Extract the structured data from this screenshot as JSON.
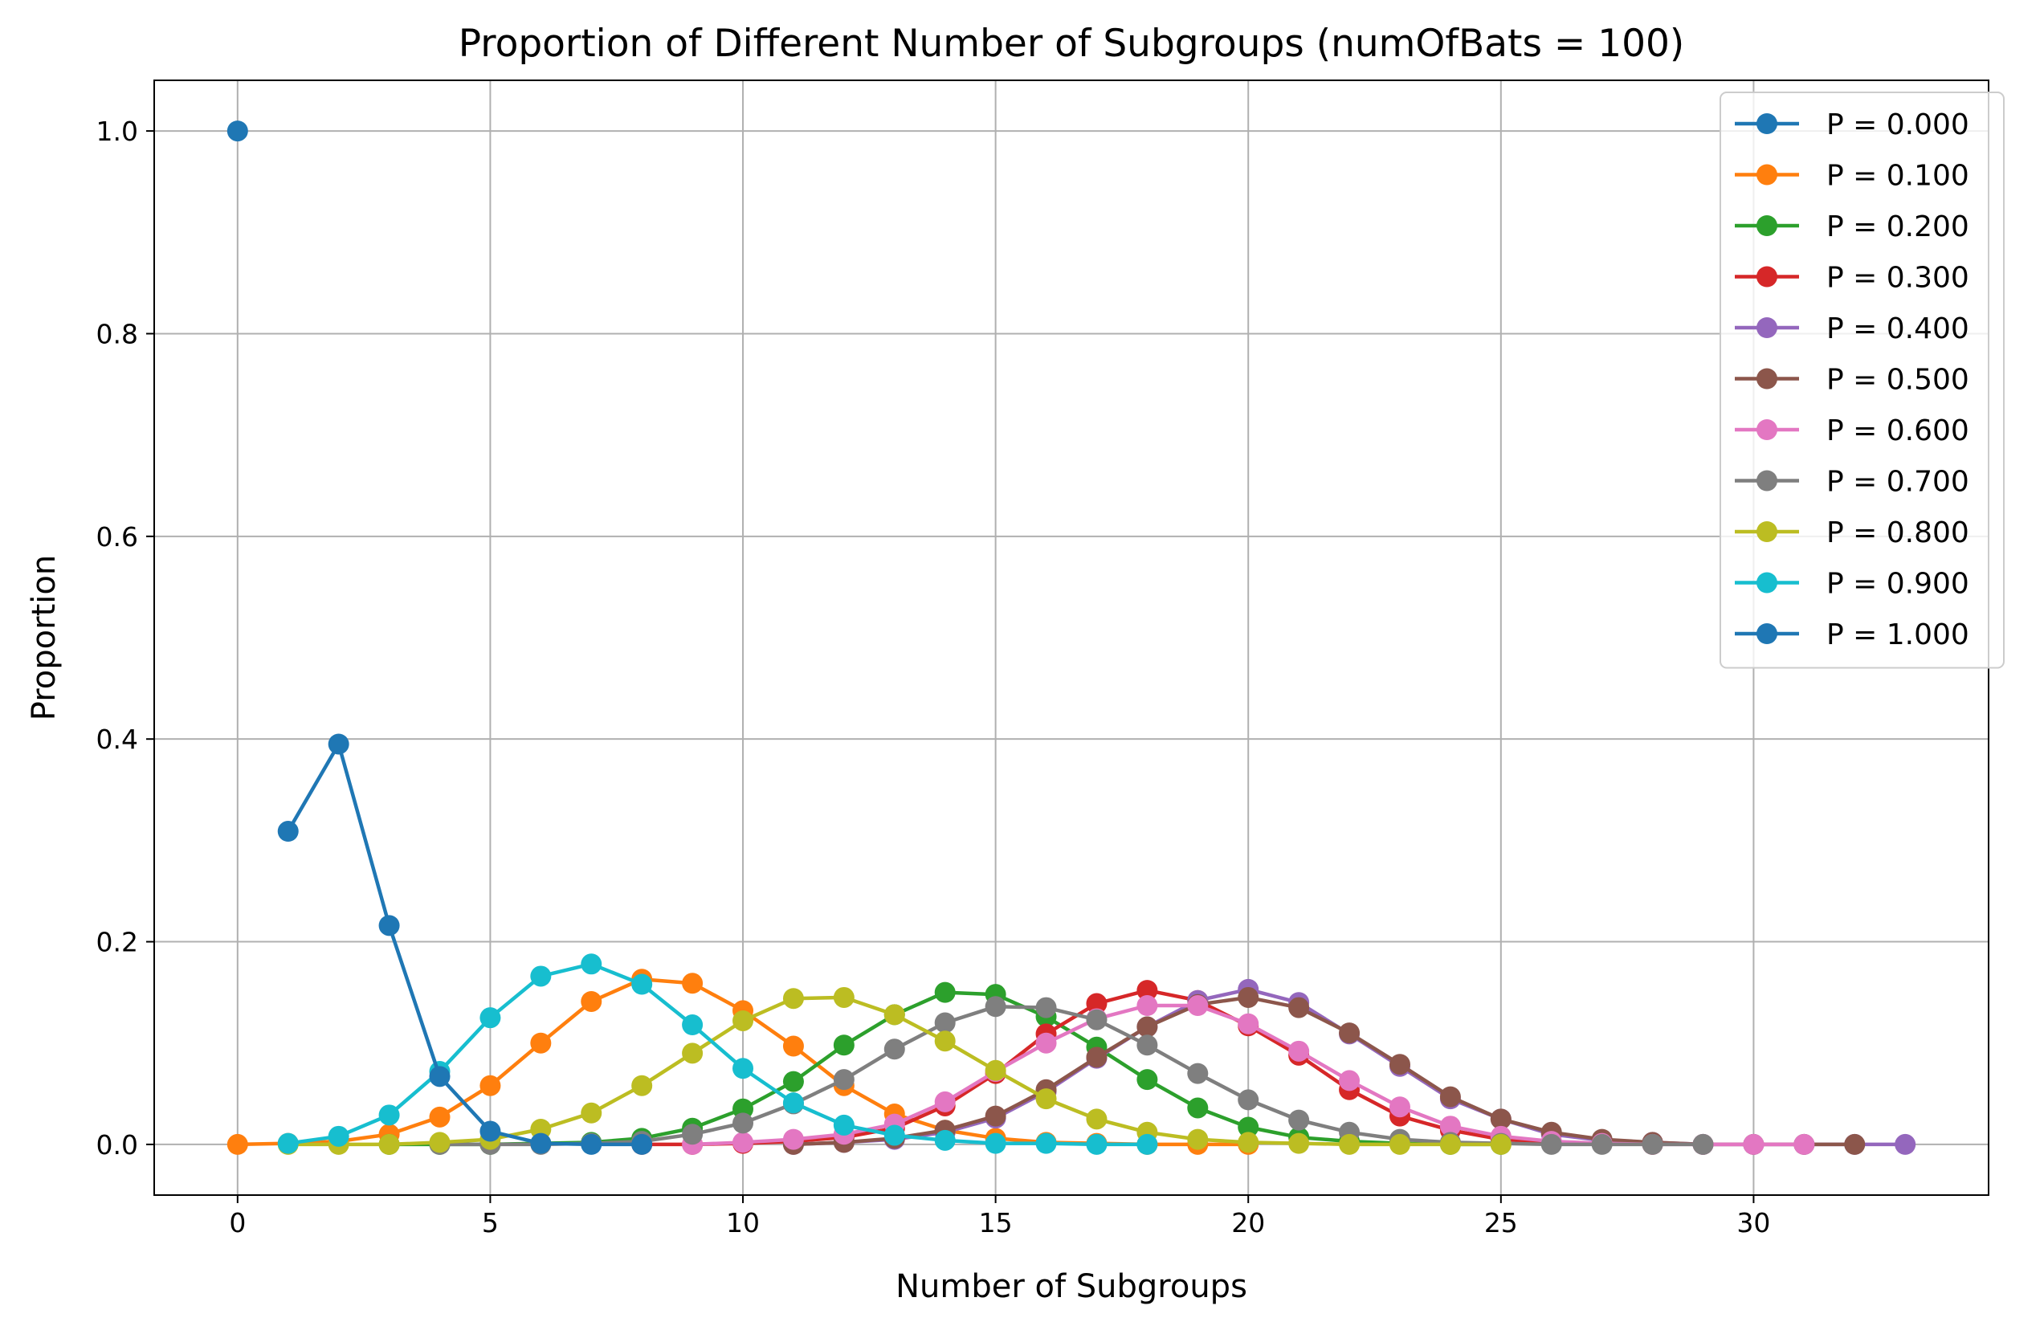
{
  "chart_data": {
    "type": "line",
    "title": "Proportion of Different Number of Subgroups (numOfBats = 100)",
    "xlabel": "Number of Subgroups",
    "ylabel": "Proportion",
    "xlim": [
      -1.65,
      34.65
    ],
    "ylim": [
      -0.05,
      1.05
    ],
    "xticks": [
      0,
      5,
      10,
      15,
      20,
      25,
      30
    ],
    "yticks": [
      0.0,
      0.2,
      0.4,
      0.6,
      0.8,
      1.0
    ],
    "xtick_labels": [
      "0",
      "5",
      "10",
      "15",
      "20",
      "25",
      "30"
    ],
    "ytick_labels": [
      "0.0",
      "0.2",
      "0.4",
      "0.6",
      "0.8",
      "1.0"
    ],
    "grid": true,
    "legend_position": "top-right",
    "marker": "circle",
    "series": [
      {
        "name": "P = 0.000",
        "color": "#1f77b4",
        "x": [
          0
        ],
        "y": [
          1.0
        ]
      },
      {
        "name": "P = 0.100",
        "color": "#ff7f0e",
        "x": [
          0,
          1,
          2,
          3,
          4,
          5,
          6,
          7,
          8,
          9,
          10,
          11,
          12,
          13,
          14,
          15,
          16,
          17,
          18,
          19,
          20
        ],
        "y": [
          0,
          0.001,
          0.003,
          0.01,
          0.027,
          0.058,
          0.1,
          0.141,
          0.163,
          0.159,
          0.132,
          0.097,
          0.058,
          0.03,
          0.014,
          0.006,
          0.002,
          0.001,
          0,
          0,
          0
        ]
      },
      {
        "name": "P = 0.200",
        "color": "#2ca02c",
        "x": [
          3,
          4,
          5,
          6,
          7,
          8,
          9,
          10,
          11,
          12,
          13,
          14,
          15,
          16,
          17,
          18,
          19,
          20,
          21,
          22,
          23,
          24,
          25
        ],
        "y": [
          0,
          0,
          0,
          0.001,
          0.002,
          0.006,
          0.016,
          0.035,
          0.062,
          0.098,
          0.128,
          0.15,
          0.148,
          0.126,
          0.096,
          0.064,
          0.036,
          0.017,
          0.007,
          0.003,
          0.001,
          0,
          0
        ]
      },
      {
        "name": "P = 0.300",
        "color": "#d62728",
        "x": [
          8,
          9,
          10,
          11,
          12,
          13,
          14,
          15,
          16,
          17,
          18,
          19,
          20,
          21,
          22,
          23,
          24,
          25,
          26,
          27,
          28
        ],
        "y": [
          0,
          0,
          0.001,
          0.003,
          0.007,
          0.016,
          0.038,
          0.07,
          0.109,
          0.139,
          0.152,
          0.142,
          0.117,
          0.088,
          0.054,
          0.028,
          0.014,
          0.005,
          0.002,
          0.001,
          0
        ]
      },
      {
        "name": "P = 0.400",
        "color": "#9467bd",
        "x": [
          11,
          12,
          13,
          14,
          15,
          16,
          17,
          18,
          19,
          20,
          21,
          22,
          23,
          24,
          25,
          26,
          27,
          28,
          29,
          30,
          31,
          32,
          33
        ],
        "y": [
          0,
          0.002,
          0.005,
          0.012,
          0.026,
          0.052,
          0.085,
          0.116,
          0.142,
          0.153,
          0.14,
          0.109,
          0.077,
          0.045,
          0.025,
          0.01,
          0.004,
          0.002,
          0,
          0,
          0,
          0,
          0
        ]
      },
      {
        "name": "P = 0.500",
        "color": "#8c564b",
        "x": [
          11,
          12,
          13,
          14,
          15,
          16,
          17,
          18,
          19,
          20,
          21,
          22,
          23,
          24,
          25,
          26,
          27,
          28,
          29,
          30,
          31,
          32
        ],
        "y": [
          0,
          0.002,
          0.006,
          0.014,
          0.028,
          0.054,
          0.086,
          0.116,
          0.138,
          0.145,
          0.135,
          0.11,
          0.079,
          0.047,
          0.025,
          0.012,
          0.005,
          0.002,
          0,
          0,
          0,
          0
        ]
      },
      {
        "name": "P = 0.600",
        "color": "#e377c2",
        "x": [
          9,
          10,
          11,
          12,
          13,
          14,
          15,
          16,
          17,
          18,
          19,
          20,
          21,
          22,
          23,
          24,
          25,
          26,
          27,
          28,
          29,
          30,
          31
        ],
        "y": [
          0,
          0.002,
          0.005,
          0.01,
          0.02,
          0.042,
          0.072,
          0.1,
          0.124,
          0.137,
          0.137,
          0.119,
          0.092,
          0.063,
          0.037,
          0.018,
          0.008,
          0.003,
          0.001,
          0,
          0,
          0,
          0
        ]
      },
      {
        "name": "P = 0.700",
        "color": "#7f7f7f",
        "x": [
          4,
          5,
          6,
          7,
          8,
          9,
          10,
          11,
          12,
          13,
          14,
          15,
          16,
          17,
          18,
          19,
          20,
          21,
          22,
          23,
          24,
          25,
          26,
          27,
          28,
          29
        ],
        "y": [
          0,
          0,
          0,
          0.001,
          0.003,
          0.01,
          0.021,
          0.04,
          0.064,
          0.094,
          0.12,
          0.136,
          0.135,
          0.123,
          0.098,
          0.07,
          0.044,
          0.024,
          0.012,
          0.005,
          0.002,
          0.001,
          0,
          0,
          0,
          0
        ]
      },
      {
        "name": "P = 0.800",
        "color": "#bcbd22",
        "x": [
          1,
          2,
          3,
          4,
          5,
          6,
          7,
          8,
          9,
          10,
          11,
          12,
          13,
          14,
          15,
          16,
          17,
          18,
          19,
          20,
          21,
          22,
          23,
          24,
          25
        ],
        "y": [
          0,
          0,
          0,
          0.002,
          0.005,
          0.015,
          0.031,
          0.058,
          0.09,
          0.122,
          0.144,
          0.145,
          0.128,
          0.102,
          0.073,
          0.045,
          0.025,
          0.012,
          0.005,
          0.002,
          0.001,
          0,
          0,
          0,
          0
        ]
      },
      {
        "name": "P = 0.900",
        "color": "#17becf",
        "x": [
          1,
          2,
          3,
          4,
          5,
          6,
          7,
          8,
          9,
          10,
          11,
          12,
          13,
          14,
          15,
          16,
          17,
          18
        ],
        "y": [
          0.001,
          0.008,
          0.029,
          0.072,
          0.125,
          0.166,
          0.178,
          0.158,
          0.118,
          0.075,
          0.041,
          0.019,
          0.009,
          0.004,
          0.001,
          0.001,
          0,
          0
        ]
      },
      {
        "name": "P = 1.000",
        "color": "#1f77b4",
        "x": [
          1,
          2,
          3,
          4,
          5,
          6,
          7,
          8
        ],
        "y": [
          0.309,
          0.395,
          0.216,
          0.067,
          0.013,
          0.001,
          0,
          0
        ]
      }
    ]
  }
}
